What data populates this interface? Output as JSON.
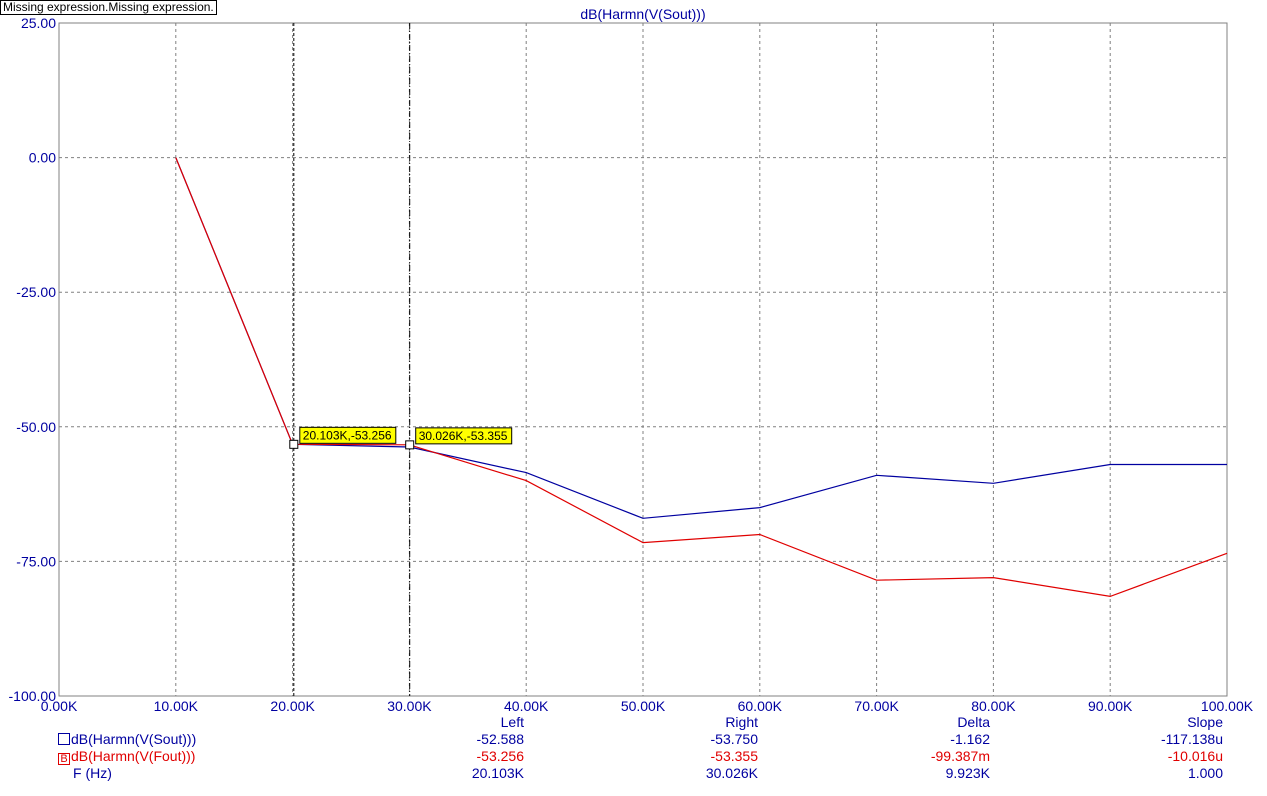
{
  "error_banner": "Missing expression.Missing expression.",
  "chart_data": {
    "type": "line",
    "title": "dB(Harmn(V(Sout)))",
    "xlabel": "",
    "ylabel": "",
    "xlim": [
      0,
      100000
    ],
    "ylim": [
      -100,
      25
    ],
    "grid": true,
    "x_ticks": [
      "0.00K",
      "10.00K",
      "20.00K",
      "30.00K",
      "40.00K",
      "50.00K",
      "60.00K",
      "70.00K",
      "80.00K",
      "90.00K",
      "100.00K"
    ],
    "y_ticks": [
      "25.00",
      "0.00",
      "-25.00",
      "-50.00",
      "-75.00",
      "-100.00"
    ],
    "x": [
      10000,
      20000,
      30000,
      40000,
      50000,
      60000,
      70000,
      80000,
      90000,
      100000
    ],
    "series": [
      {
        "name": "dB(Harmn(V(Sout)))",
        "color": "#0000a0",
        "values": [
          0,
          -53.25,
          -53.75,
          -58.5,
          -67.0,
          -65.0,
          -59.0,
          -60.5,
          -57.0,
          -57.0
        ]
      },
      {
        "name": "dB(Harmn(V(Fout)))",
        "color": "#e00000",
        "values": [
          0,
          -53.25,
          -53.35,
          -60.0,
          -71.5,
          -70.0,
          -78.5,
          -78.0,
          -81.5,
          -73.5
        ]
      }
    ],
    "cursors": [
      {
        "x": 20103,
        "y": -53.256,
        "label": "20.103K,-53.256"
      },
      {
        "x": 30026,
        "y": -53.355,
        "label": "30.026K,-53.355"
      }
    ]
  },
  "table": {
    "headers": {
      "left": "Left",
      "right": "Right",
      "delta": "Delta",
      "slope": "Slope"
    },
    "rows": [
      {
        "label": "dB(Harmn(V(Sout)))",
        "marker": "",
        "left": "-52.588",
        "right": "-53.750",
        "delta": "-1.162",
        "slope": "-117.138u"
      },
      {
        "label": "dB(Harmn(V(Fout)))",
        "marker": "B",
        "left": "-53.256",
        "right": "-53.355",
        "delta": "-99.387m",
        "slope": "-10.016u"
      },
      {
        "label": "F (Hz)",
        "marker": "",
        "left": "20.103K",
        "right": "30.026K",
        "delta": "9.923K",
        "slope": "1.000"
      }
    ]
  }
}
